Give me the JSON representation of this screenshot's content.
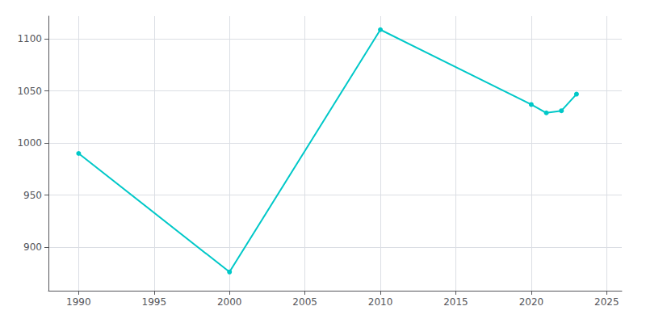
{
  "chart_data": {
    "type": "line",
    "x": [
      1990,
      2000,
      2010,
      2020,
      2021,
      2022,
      2023
    ],
    "values": [
      990,
      876,
      1109,
      1037,
      1029,
      1031,
      1047
    ],
    "color": "#00c8c8",
    "marker": "circle",
    "xlim": [
      1988,
      2026
    ],
    "ylim": [
      858,
      1122
    ],
    "xticks": [
      1990,
      1995,
      2000,
      2005,
      2010,
      2015,
      2020,
      2025
    ],
    "yticks": [
      900,
      950,
      1000,
      1050,
      1100
    ],
    "grid": true
  }
}
